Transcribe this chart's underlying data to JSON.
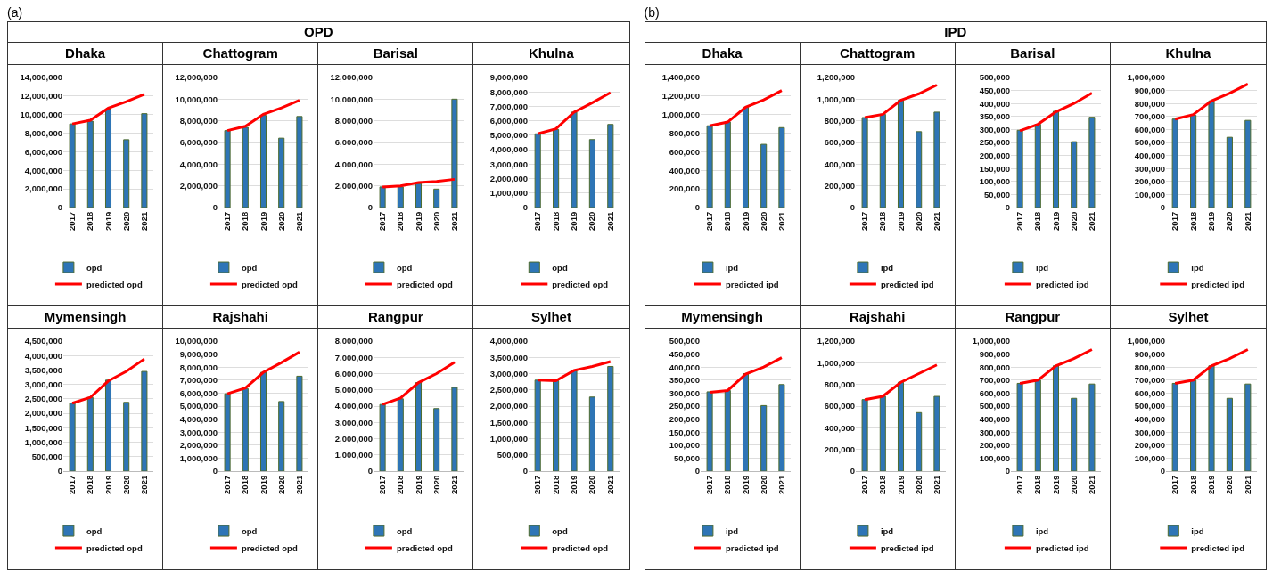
{
  "chart_data": [
    {
      "type": "bar",
      "title": "Dhaka",
      "annotations": [
        "(a)",
        "OPD"
      ],
      "categories": [
        "2017",
        "2018",
        "2019",
        "2020",
        "2021"
      ],
      "ylim": [
        0,
        14000000
      ],
      "yticks": [
        {
          "value": 0,
          "label": "0"
        },
        {
          "value": 2000000,
          "label": "2,000,000"
        },
        {
          "value": 4000000,
          "label": "4,000,000"
        },
        {
          "value": 6000000,
          "label": "6,000,000"
        },
        {
          "value": 8000000,
          "label": "8,000,000"
        },
        {
          "value": 10000000,
          "label": "10,000,000"
        },
        {
          "value": 12000000,
          "label": "12,000,000"
        },
        {
          "value": 14000000,
          "label": "14,000,000"
        }
      ],
      "grid": "y",
      "legend": "bottom",
      "series": [
        {
          "name": "opd",
          "color": "#2e75b6",
          "values": [
            9000000,
            9300000,
            10600000,
            7300000,
            10100000
          ]
        },
        {
          "name": "predicted opd",
          "type": "line",
          "color": "#ff0000",
          "values": [
            9000000,
            9400000,
            10700000,
            11400000,
            12200000
          ]
        }
      ]
    },
    {
      "type": "bar",
      "title": "Chattogram",
      "categories": [
        "2017",
        "2018",
        "2019",
        "2020",
        "2021"
      ],
      "ylim": [
        0,
        12000000
      ],
      "yticks": [
        {
          "value": 0,
          "label": "0"
        },
        {
          "value": 2000000,
          "label": "2,000,000"
        },
        {
          "value": 4000000,
          "label": "4,000,000"
        },
        {
          "value": 6000000,
          "label": "6,000,000"
        },
        {
          "value": 8000000,
          "label": "8,000,000"
        },
        {
          "value": 10000000,
          "label": "10,000,000"
        },
        {
          "value": 12000000,
          "label": "12,000,000"
        }
      ],
      "grid": "y",
      "legend": "bottom",
      "series": [
        {
          "name": "opd",
          "color": "#2e75b6",
          "values": [
            7100000,
            7400000,
            8500000,
            6400000,
            8400000
          ]
        },
        {
          "name": "predicted opd",
          "type": "line",
          "color": "#ff0000",
          "values": [
            7100000,
            7500000,
            8600000,
            9200000,
            9900000
          ]
        }
      ]
    },
    {
      "type": "bar",
      "title": "Barisal",
      "categories": [
        "2017",
        "2018",
        "2019",
        "2020",
        "2021"
      ],
      "ylim": [
        0,
        12000000
      ],
      "yticks": [
        {
          "value": 0,
          "label": "0"
        },
        {
          "value": 2000000,
          "label": "2,000,000"
        },
        {
          "value": 4000000,
          "label": "4,000,000"
        },
        {
          "value": 6000000,
          "label": "6,000,000"
        },
        {
          "value": 8000000,
          "label": "8,000,000"
        },
        {
          "value": 10000000,
          "label": "10,000,000"
        },
        {
          "value": 12000000,
          "label": "12,000,000"
        }
      ],
      "grid": "y",
      "legend": "bottom",
      "series": [
        {
          "name": "opd",
          "color": "#2e75b6",
          "values": [
            1900000,
            1900000,
            2200000,
            1700000,
            10000000
          ]
        },
        {
          "name": "predicted opd",
          "type": "line",
          "color": "#ff0000",
          "values": [
            1900000,
            2000000,
            2300000,
            2400000,
            2600000
          ]
        }
      ]
    },
    {
      "type": "bar",
      "title": "Khulna",
      "categories": [
        "2017",
        "2018",
        "2019",
        "2020",
        "2021"
      ],
      "ylim": [
        0,
        9000000
      ],
      "yticks": [
        {
          "value": 0,
          "label": "0"
        },
        {
          "value": 1000000,
          "label": "1,000,000"
        },
        {
          "value": 2000000,
          "label": "2,000,000"
        },
        {
          "value": 3000000,
          "label": "3,000,000"
        },
        {
          "value": 4000000,
          "label": "4,000,000"
        },
        {
          "value": 5000000,
          "label": "5,000,000"
        },
        {
          "value": 6000000,
          "label": "6,000,000"
        },
        {
          "value": 7000000,
          "label": "7,000,000"
        },
        {
          "value": 8000000,
          "label": "8,000,000"
        },
        {
          "value": 9000000,
          "label": "9,000,000"
        }
      ],
      "grid": "y",
      "legend": "bottom",
      "series": [
        {
          "name": "opd",
          "color": "#2e75b6",
          "values": [
            5100000,
            5400000,
            6600000,
            4700000,
            5750000
          ]
        },
        {
          "name": "predicted opd",
          "type": "line",
          "color": "#ff0000",
          "values": [
            5100000,
            5450000,
            6600000,
            7250000,
            7950000
          ]
        }
      ]
    },
    {
      "type": "bar",
      "title": "Mymensingh",
      "categories": [
        "2017",
        "2018",
        "2019",
        "2020",
        "2021"
      ],
      "ylim": [
        0,
        4500000
      ],
      "yticks": [
        {
          "value": 0,
          "label": "0"
        },
        {
          "value": 500000,
          "label": "500,000"
        },
        {
          "value": 1000000,
          "label": "1,000,000"
        },
        {
          "value": 1500000,
          "label": "1,500,000"
        },
        {
          "value": 2000000,
          "label": "2,000,000"
        },
        {
          "value": 2500000,
          "label": "2,500,000"
        },
        {
          "value": 3000000,
          "label": "3,000,000"
        },
        {
          "value": 3500000,
          "label": "3,500,000"
        },
        {
          "value": 4000000,
          "label": "4,000,000"
        },
        {
          "value": 4500000,
          "label": "4,500,000"
        }
      ],
      "grid": "y",
      "legend": "bottom",
      "series": [
        {
          "name": "opd",
          "color": "#2e75b6",
          "values": [
            2350000,
            2550000,
            3150000,
            2380000,
            3450000
          ]
        },
        {
          "name": "predicted opd",
          "type": "line",
          "color": "#ff0000",
          "values": [
            2350000,
            2550000,
            3120000,
            3450000,
            3880000
          ]
        }
      ]
    },
    {
      "type": "bar",
      "title": "Rajshahi",
      "categories": [
        "2017",
        "2018",
        "2019",
        "2020",
        "2021"
      ],
      "ylim": [
        0,
        10000000
      ],
      "yticks": [
        {
          "value": 0,
          "label": "0"
        },
        {
          "value": 1000000,
          "label": "1,000,000"
        },
        {
          "value": 2000000,
          "label": "2,000,000"
        },
        {
          "value": 3000000,
          "label": "3,000,000"
        },
        {
          "value": 4000000,
          "label": "4,000,000"
        },
        {
          "value": 5000000,
          "label": "5,000,000"
        },
        {
          "value": 6000000,
          "label": "6,000,000"
        },
        {
          "value": 7000000,
          "label": "7,000,000"
        },
        {
          "value": 8000000,
          "label": "8,000,000"
        },
        {
          "value": 9000000,
          "label": "9,000,000"
        },
        {
          "value": 10000000,
          "label": "10,000,000"
        }
      ],
      "grid": "y",
      "legend": "bottom",
      "series": [
        {
          "name": "opd",
          "color": "#2e75b6",
          "values": [
            5950000,
            6350000,
            7600000,
            5350000,
            7300000
          ]
        },
        {
          "name": "predicted opd",
          "type": "line",
          "color": "#ff0000",
          "values": [
            5950000,
            6400000,
            7600000,
            8350000,
            9150000
          ]
        }
      ]
    },
    {
      "type": "bar",
      "title": "Rangpur",
      "categories": [
        "2017",
        "2018",
        "2019",
        "2020",
        "2021"
      ],
      "ylim": [
        0,
        8000000
      ],
      "yticks": [
        {
          "value": 0,
          "label": "0"
        },
        {
          "value": 1000000,
          "label": "1,000,000"
        },
        {
          "value": 2000000,
          "label": "2,000,000"
        },
        {
          "value": 3000000,
          "label": "3,000,000"
        },
        {
          "value": 4000000,
          "label": "4,000,000"
        },
        {
          "value": 5000000,
          "label": "5,000,000"
        },
        {
          "value": 6000000,
          "label": "6,000,000"
        },
        {
          "value": 7000000,
          "label": "7,000,000"
        },
        {
          "value": 8000000,
          "label": "8,000,000"
        }
      ],
      "grid": "y",
      "legend": "bottom",
      "series": [
        {
          "name": "opd",
          "color": "#2e75b6",
          "values": [
            4100000,
            4450000,
            5450000,
            3850000,
            5150000
          ]
        },
        {
          "name": "predicted opd",
          "type": "line",
          "color": "#ff0000",
          "values": [
            4100000,
            4500000,
            5450000,
            6000000,
            6700000
          ]
        }
      ]
    },
    {
      "type": "bar",
      "title": "Sylhet",
      "categories": [
        "2017",
        "2018",
        "2019",
        "2020",
        "2021"
      ],
      "ylim": [
        0,
        4000000
      ],
      "yticks": [
        {
          "value": 0,
          "label": "0"
        },
        {
          "value": 500000,
          "label": "500,000"
        },
        {
          "value": 1000000,
          "label": "1,000,000"
        },
        {
          "value": 1500000,
          "label": "1,500,000"
        },
        {
          "value": 2000000,
          "label": "2,000,000"
        },
        {
          "value": 2500000,
          "label": "2,500,000"
        },
        {
          "value": 3000000,
          "label": "3,000,000"
        },
        {
          "value": 3500000,
          "label": "3,500,000"
        },
        {
          "value": 4000000,
          "label": "4,000,000"
        }
      ],
      "grid": "y",
      "legend": "bottom",
      "series": [
        {
          "name": "opd",
          "color": "#2e75b6",
          "values": [
            2800000,
            2780000,
            3100000,
            2280000,
            3220000
          ]
        },
        {
          "name": "predicted opd",
          "type": "line",
          "color": "#ff0000",
          "values": [
            2800000,
            2780000,
            3100000,
            3220000,
            3370000
          ]
        }
      ]
    },
    {
      "type": "bar",
      "title": "Dhaka",
      "annotations": [
        "(b)",
        "IPD"
      ],
      "categories": [
        "2017",
        "2018",
        "2019",
        "2020",
        "2021"
      ],
      "ylim": [
        0,
        1400000
      ],
      "yticks": [
        {
          "value": 0,
          "label": "0"
        },
        {
          "value": 200000,
          "label": "200,000"
        },
        {
          "value": 400000,
          "label": "400,000"
        },
        {
          "value": 600000,
          "label": "600,000"
        },
        {
          "value": 800000,
          "label": "800,000"
        },
        {
          "value": 1000000,
          "label": "1,000,000"
        },
        {
          "value": 1200000,
          "label": "1,200,000"
        },
        {
          "value": 1400000,
          "label": "1,400,000"
        }
      ],
      "grid": "y",
      "legend": "bottom",
      "series": [
        {
          "name": "ipd",
          "color": "#2e75b6",
          "values": [
            880000,
            920000,
            1080000,
            680000,
            860000
          ]
        },
        {
          "name": "predicted ipd",
          "type": "line",
          "color": "#ff0000",
          "values": [
            880000,
            920000,
            1080000,
            1160000,
            1260000
          ]
        }
      ]
    },
    {
      "type": "bar",
      "title": "Chattogram",
      "categories": [
        "2017",
        "2018",
        "2019",
        "2020",
        "2021"
      ],
      "ylim": [
        0,
        1200000
      ],
      "yticks": [
        {
          "value": 0,
          "label": "0"
        },
        {
          "value": 200000,
          "label": "200,000"
        },
        {
          "value": 400000,
          "label": "400,000"
        },
        {
          "value": 600000,
          "label": "600,000"
        },
        {
          "value": 800000,
          "label": "800,000"
        },
        {
          "value": 1000000,
          "label": "1,000,000"
        },
        {
          "value": 1200000,
          "label": "1,200,000"
        }
      ],
      "grid": "y",
      "legend": "bottom",
      "series": [
        {
          "name": "ipd",
          "color": "#2e75b6",
          "values": [
            830000,
            860000,
            990000,
            700000,
            880000
          ]
        },
        {
          "name": "predicted ipd",
          "type": "line",
          "color": "#ff0000",
          "values": [
            830000,
            860000,
            990000,
            1050000,
            1130000
          ]
        }
      ]
    },
    {
      "type": "bar",
      "title": "Barisal",
      "categories": [
        "2017",
        "2018",
        "2019",
        "2020",
        "2021"
      ],
      "ylim": [
        0,
        500000
      ],
      "yticks": [
        {
          "value": 0,
          "label": "0"
        },
        {
          "value": 50000,
          "label": "50,000"
        },
        {
          "value": 100000,
          "label": "100,000"
        },
        {
          "value": 150000,
          "label": "150,000"
        },
        {
          "value": 200000,
          "label": "200,000"
        },
        {
          "value": 250000,
          "label": "250,000"
        },
        {
          "value": 300000,
          "label": "300,000"
        },
        {
          "value": 350000,
          "label": "350,000"
        },
        {
          "value": 400000,
          "label": "400,000"
        },
        {
          "value": 450000,
          "label": "450,000"
        },
        {
          "value": 500000,
          "label": "500,000"
        }
      ],
      "grid": "y",
      "legend": "bottom",
      "series": [
        {
          "name": "ipd",
          "color": "#2e75b6",
          "values": [
            297000,
            320000,
            370000,
            253000,
            347000
          ]
        },
        {
          "name": "predicted ipd",
          "type": "line",
          "color": "#ff0000",
          "values": [
            295000,
            320000,
            368000,
            400000,
            440000
          ]
        }
      ]
    },
    {
      "type": "bar",
      "title": "Khulna",
      "categories": [
        "2017",
        "2018",
        "2019",
        "2020",
        "2021"
      ],
      "ylim": [
        0,
        1000000
      ],
      "yticks": [
        {
          "value": 0,
          "label": "0"
        },
        {
          "value": 100000,
          "label": "100,000"
        },
        {
          "value": 200000,
          "label": "200,000"
        },
        {
          "value": 300000,
          "label": "300,000"
        },
        {
          "value": 400000,
          "label": "400,000"
        },
        {
          "value": 500000,
          "label": "500,000"
        },
        {
          "value": 600000,
          "label": "600,000"
        },
        {
          "value": 700000,
          "label": "700,000"
        },
        {
          "value": 800000,
          "label": "800,000"
        },
        {
          "value": 900000,
          "label": "900,000"
        },
        {
          "value": 1000000,
          "label": "1,000,000"
        }
      ],
      "grid": "y",
      "legend": "bottom",
      "series": [
        {
          "name": "ipd",
          "color": "#2e75b6",
          "values": [
            680000,
            710000,
            820000,
            540000,
            670000
          ]
        },
        {
          "name": "predicted ipd",
          "type": "line",
          "color": "#ff0000",
          "values": [
            680000,
            715000,
            820000,
            880000,
            950000
          ]
        }
      ]
    },
    {
      "type": "bar",
      "title": "Mymensingh",
      "categories": [
        "2017",
        "2018",
        "2019",
        "2020",
        "2021"
      ],
      "ylim": [
        0,
        500000
      ],
      "yticks": [
        {
          "value": 0,
          "label": "0"
        },
        {
          "value": 50000,
          "label": "50,000"
        },
        {
          "value": 100000,
          "label": "100,000"
        },
        {
          "value": 150000,
          "label": "150,000"
        },
        {
          "value": 200000,
          "label": "200,000"
        },
        {
          "value": 250000,
          "label": "250,000"
        },
        {
          "value": 300000,
          "label": "300,000"
        },
        {
          "value": 350000,
          "label": "350,000"
        },
        {
          "value": 400000,
          "label": "400,000"
        },
        {
          "value": 450000,
          "label": "450,000"
        },
        {
          "value": 500000,
          "label": "500,000"
        }
      ],
      "grid": "y",
      "legend": "bottom",
      "series": [
        {
          "name": "ipd",
          "color": "#2e75b6",
          "values": [
            305000,
            310000,
            375000,
            252000,
            333000
          ]
        },
        {
          "name": "predicted ipd",
          "type": "line",
          "color": "#ff0000",
          "values": [
            303000,
            310000,
            373000,
            400000,
            436000
          ]
        }
      ]
    },
    {
      "type": "bar",
      "title": "Rajshahi",
      "categories": [
        "2017",
        "2018",
        "2019",
        "2020",
        "2021"
      ],
      "ylim": [
        0,
        1200000
      ],
      "yticks": [
        {
          "value": 0,
          "label": "0"
        },
        {
          "value": 200000,
          "label": "200,000"
        },
        {
          "value": 400000,
          "label": "400,000"
        },
        {
          "value": 600000,
          "label": "600,000"
        },
        {
          "value": 800000,
          "label": "800,000"
        },
        {
          "value": 1000000,
          "label": "1,000,000"
        },
        {
          "value": 1200000,
          "label": "1,200,000"
        }
      ],
      "grid": "y",
      "legend": "bottom",
      "series": [
        {
          "name": "ipd",
          "color": "#2e75b6",
          "values": [
            660000,
            690000,
            820000,
            540000,
            690000
          ]
        },
        {
          "name": "predicted ipd",
          "type": "line",
          "color": "#ff0000",
          "values": [
            660000,
            690000,
            820000,
            900000,
            980000
          ]
        }
      ]
    },
    {
      "type": "bar",
      "title": "Rangpur",
      "categories": [
        "2017",
        "2018",
        "2019",
        "2020",
        "2021"
      ],
      "ylim": [
        0,
        1000000
      ],
      "yticks": [
        {
          "value": 0,
          "label": "0"
        },
        {
          "value": 100000,
          "label": "100,000"
        },
        {
          "value": 200000,
          "label": "200,000"
        },
        {
          "value": 300000,
          "label": "300,000"
        },
        {
          "value": 400000,
          "label": "400,000"
        },
        {
          "value": 500000,
          "label": "500,000"
        },
        {
          "value": 600000,
          "label": "600,000"
        },
        {
          "value": 700000,
          "label": "700,000"
        },
        {
          "value": 800000,
          "label": "800,000"
        },
        {
          "value": 900000,
          "label": "900,000"
        },
        {
          "value": 1000000,
          "label": "1,000,000"
        }
      ],
      "grid": "y",
      "legend": "bottom",
      "series": [
        {
          "name": "ipd",
          "color": "#2e75b6",
          "values": [
            675000,
            700000,
            810000,
            560000,
            670000
          ]
        },
        {
          "name": "predicted ipd",
          "type": "line",
          "color": "#ff0000",
          "values": [
            675000,
            700000,
            810000,
            865000,
            935000
          ]
        }
      ]
    },
    {
      "type": "bar",
      "title": "Sylhet",
      "categories": [
        "2017",
        "2018",
        "2019",
        "2020",
        "2021"
      ],
      "ylim": [
        0,
        1000000
      ],
      "yticks": [
        {
          "value": 0,
          "label": "0"
        },
        {
          "value": 100000,
          "label": "100,000"
        },
        {
          "value": 200000,
          "label": "200,000"
        },
        {
          "value": 300000,
          "label": "300,000"
        },
        {
          "value": 400000,
          "label": "400,000"
        },
        {
          "value": 500000,
          "label": "500,000"
        },
        {
          "value": 600000,
          "label": "600,000"
        },
        {
          "value": 700000,
          "label": "700,000"
        },
        {
          "value": 800000,
          "label": "800,000"
        },
        {
          "value": 900000,
          "label": "900,000"
        },
        {
          "value": 1000000,
          "label": "1,000,000"
        }
      ],
      "grid": "y",
      "legend": "bottom",
      "series": [
        {
          "name": "ipd",
          "color": "#2e75b6",
          "values": [
            675000,
            700000,
            810000,
            560000,
            670000
          ]
        },
        {
          "name": "predicted ipd",
          "type": "line",
          "color": "#ff0000",
          "values": [
            675000,
            700000,
            810000,
            865000,
            935000
          ]
        }
      ]
    }
  ]
}
